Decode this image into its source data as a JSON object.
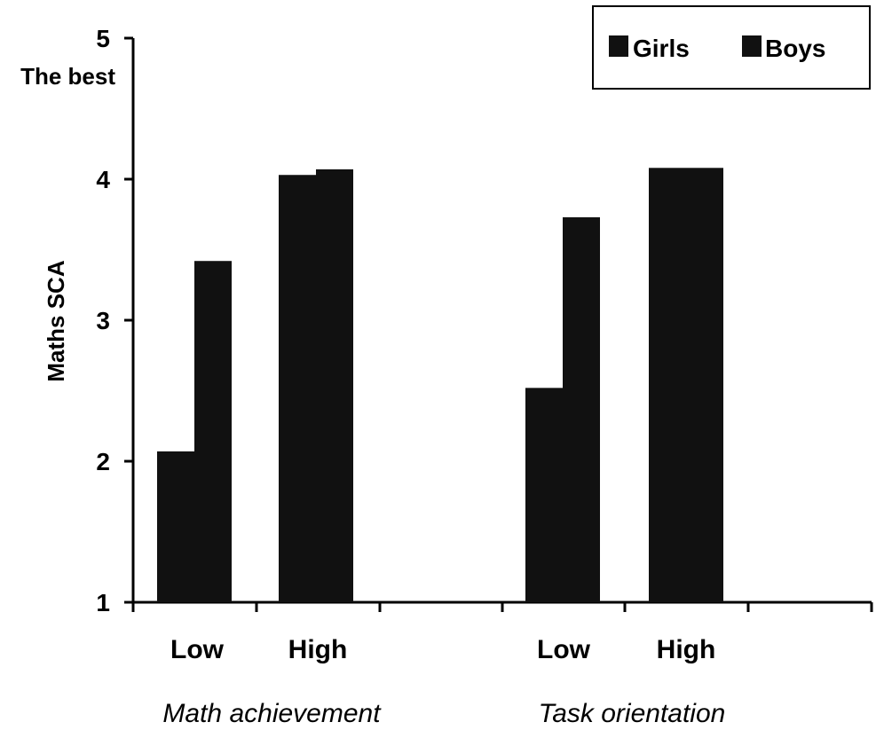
{
  "chart_data": {
    "type": "bar",
    "ylabel": "Maths SCA",
    "ymax_label": "The best",
    "ylim": [
      1,
      5
    ],
    "yticks": [
      "1",
      "2",
      "3",
      "4",
      "5"
    ],
    "groups": [
      {
        "label": "Math achievement",
        "categories": [
          "Low",
          "High"
        ]
      },
      {
        "label": "Task orientation",
        "categories": [
          "Low",
          "High"
        ]
      }
    ],
    "categories": [
      "Low",
      "High",
      "Low",
      "High"
    ],
    "series": [
      {
        "name": "Girls",
        "color": "#111111",
        "values": [
          2.07,
          4.03,
          2.52,
          4.08
        ]
      },
      {
        "name": "Boys",
        "color": "#111111",
        "values": [
          3.42,
          4.07,
          3.73,
          4.08
        ]
      }
    ],
    "legend_position": "top-right",
    "grid": false
  }
}
